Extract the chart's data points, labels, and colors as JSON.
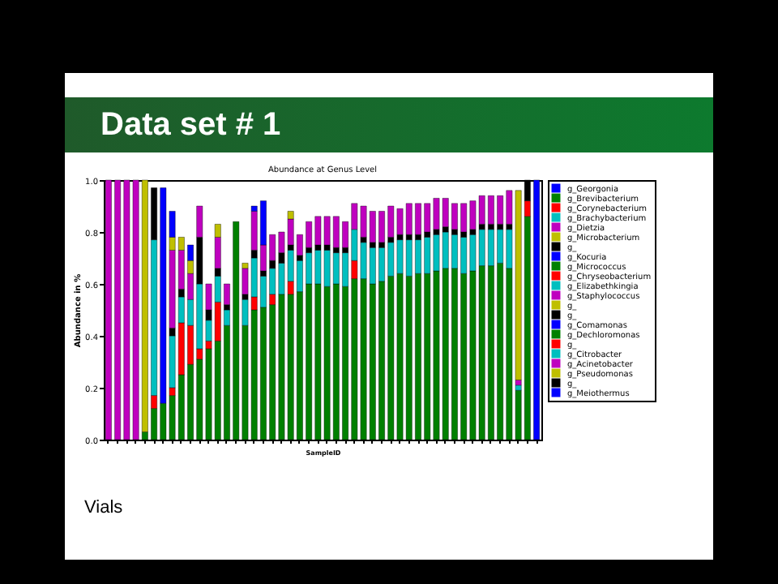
{
  "chart_data": {
    "type": "bar",
    "stacked": true,
    "title": "Data set # 1",
    "subtitle": "Abundance at Genus Level",
    "xlabel": "SampleID",
    "ylabel": "Abundance in %",
    "annotations": [
      "Vials"
    ],
    "legend": "right",
    "ylim": [
      0,
      1
    ],
    "yticks": [
      {
        "value": 0,
        "label": "0.0"
      },
      {
        "value": 0.2,
        "label": "0.2"
      },
      {
        "value": 0.4,
        "label": "0.4"
      },
      {
        "value": 0.6,
        "label": "0.6"
      },
      {
        "value": 0.8,
        "label": "0.8"
      },
      {
        "value": 1,
        "label": "1.0"
      }
    ],
    "categories": [
      null,
      null,
      null,
      null,
      null,
      null,
      null,
      null,
      null,
      null,
      null,
      null,
      null,
      null,
      null,
      null,
      null,
      null,
      null,
      null,
      null,
      null,
      null,
      null,
      null,
      null,
      null,
      null,
      null,
      null,
      null,
      null,
      null,
      null,
      null,
      null,
      null,
      null,
      null,
      null,
      null,
      null,
      null,
      null,
      null,
      null,
      null,
      null
    ],
    "series": [
      {
        "name": "g_Georgonia",
        "color": "#0000ff",
        "values": [
          null,
          null,
          null,
          null,
          null,
          null,
          null,
          null,
          null,
          null,
          null,
          null,
          null,
          null,
          null,
          null,
          null,
          null,
          null,
          null,
          null,
          null,
          null,
          null,
          null,
          null,
          null,
          null,
          null,
          null,
          null,
          null,
          null,
          null,
          null,
          null,
          null,
          null,
          null,
          null,
          null,
          null,
          null,
          null,
          null,
          null,
          null,
          null
        ]
      },
      {
        "name": "g_Brevibacterium",
        "color": "#008000",
        "values": [
          null,
          null,
          null,
          null,
          0.03,
          0.12,
          0.14,
          0.17,
          0.25,
          0.29,
          0.31,
          0.35,
          0.38,
          0.44,
          0.84,
          0.44,
          0.5,
          0.51,
          0.52,
          0.56,
          0.56,
          0.57,
          0.6,
          0.6,
          0.59,
          0.6,
          0.59,
          0.62,
          0.62,
          0.6,
          0.61,
          0.63,
          0.64,
          0.63,
          0.64,
          0.64,
          0.65,
          0.66,
          0.66,
          0.64,
          0.65,
          0.67,
          0.67,
          0.68,
          0.66,
          0.19,
          0.86,
          null
        ]
      },
      {
        "name": "g_Corynebacterium",
        "color": "#ff0000",
        "values": [
          null,
          null,
          null,
          null,
          null,
          0.05,
          null,
          0.03,
          0.2,
          0.15,
          0.04,
          0.03,
          0.15,
          null,
          null,
          null,
          0.05,
          null,
          0.04,
          null,
          0.05,
          null,
          null,
          null,
          null,
          null,
          null,
          0.07,
          null,
          null,
          null,
          null,
          null,
          null,
          null,
          null,
          null,
          null,
          null,
          null,
          null,
          null,
          null,
          null,
          null,
          null,
          0.06,
          null
        ]
      },
      {
        "name": "g_Brachybacterium",
        "color": "#00bfbf",
        "values": [
          null,
          null,
          null,
          null,
          null,
          0.6,
          null,
          0.2,
          0.1,
          0.1,
          0.25,
          0.08,
          0.1,
          0.06,
          null,
          0.1,
          0.15,
          0.12,
          0.1,
          0.12,
          0.12,
          0.12,
          0.12,
          0.13,
          0.14,
          0.12,
          0.13,
          0.12,
          0.14,
          0.14,
          0.13,
          0.13,
          0.13,
          0.14,
          0.13,
          0.14,
          0.14,
          0.14,
          0.13,
          0.14,
          0.14,
          0.14,
          0.14,
          0.13,
          0.15,
          0.02,
          null,
          null
        ]
      },
      {
        "name": "g_Dietzia",
        "color": "#bf00bf",
        "values": [
          null,
          null,
          null,
          null,
          null,
          null,
          null,
          null,
          null,
          null,
          null,
          null,
          null,
          null,
          null,
          null,
          null,
          null,
          null,
          null,
          null,
          null,
          null,
          null,
          null,
          null,
          null,
          null,
          null,
          null,
          null,
          null,
          null,
          null,
          null,
          null,
          null,
          null,
          null,
          null,
          null,
          null,
          null,
          null,
          null,
          null,
          null,
          null
        ]
      },
      {
        "name": "g_Microbacterium",
        "color": "#bfbf00",
        "values": [
          null,
          null,
          null,
          null,
          null,
          null,
          null,
          null,
          null,
          null,
          null,
          null,
          null,
          null,
          null,
          null,
          null,
          null,
          null,
          null,
          null,
          null,
          null,
          null,
          null,
          null,
          null,
          null,
          null,
          null,
          null,
          null,
          null,
          null,
          null,
          null,
          null,
          null,
          null,
          null,
          null,
          null,
          null,
          null,
          null,
          null,
          null,
          null
        ]
      },
      {
        "name": "g_",
        "color": "#000000",
        "values": [
          null,
          null,
          null,
          null,
          null,
          0.2,
          null,
          0.03,
          0.03,
          null,
          0.18,
          0.04,
          0.03,
          0.02,
          null,
          0.02,
          0.03,
          0.02,
          0.03,
          0.04,
          0.02,
          0.02,
          0.02,
          0.02,
          0.02,
          0.02,
          0.02,
          null,
          0.02,
          0.02,
          0.02,
          0.02,
          0.02,
          0.02,
          0.02,
          0.02,
          0.02,
          0.02,
          0.02,
          0.02,
          0.02,
          0.02,
          0.02,
          0.02,
          0.02,
          null,
          0.08,
          null
        ]
      },
      {
        "name": "g_Kocuria",
        "color": "#0000ff",
        "values": [
          null,
          null,
          null,
          null,
          null,
          null,
          null,
          null,
          null,
          null,
          null,
          null,
          null,
          null,
          null,
          null,
          null,
          null,
          null,
          null,
          null,
          null,
          null,
          null,
          null,
          null,
          null,
          null,
          null,
          null,
          null,
          null,
          null,
          null,
          null,
          null,
          null,
          null,
          null,
          null,
          null,
          null,
          null,
          null,
          null,
          null,
          null,
          null
        ]
      },
      {
        "name": "g_Micrococcus",
        "color": "#008000",
        "values": [
          null,
          null,
          null,
          null,
          null,
          null,
          null,
          null,
          null,
          null,
          null,
          null,
          null,
          null,
          null,
          null,
          null,
          null,
          null,
          null,
          null,
          null,
          null,
          null,
          null,
          null,
          null,
          null,
          null,
          null,
          null,
          null,
          null,
          null,
          null,
          null,
          null,
          null,
          null,
          null,
          null,
          null,
          null,
          null,
          null,
          null,
          null,
          null
        ]
      },
      {
        "name": "g_Chryseobacterium",
        "color": "#ff0000",
        "values": [
          null,
          null,
          null,
          null,
          null,
          null,
          null,
          null,
          null,
          null,
          null,
          null,
          null,
          null,
          null,
          null,
          null,
          null,
          null,
          null,
          null,
          null,
          null,
          null,
          null,
          null,
          null,
          null,
          null,
          null,
          null,
          null,
          null,
          null,
          null,
          null,
          null,
          null,
          null,
          null,
          null,
          null,
          null,
          null,
          null,
          null,
          null,
          null
        ]
      },
      {
        "name": "g_Elizabethkingia",
        "color": "#00bfbf",
        "values": [
          null,
          null,
          null,
          null,
          null,
          null,
          null,
          null,
          null,
          null,
          null,
          null,
          null,
          null,
          null,
          null,
          null,
          null,
          null,
          null,
          null,
          null,
          null,
          null,
          null,
          null,
          null,
          null,
          null,
          null,
          null,
          null,
          null,
          null,
          null,
          null,
          null,
          null,
          null,
          null,
          null,
          null,
          null,
          null,
          null,
          null,
          null,
          null
        ]
      },
      {
        "name": "g_Staphylococcus",
        "color": "#bf00bf",
        "values": [
          1,
          1,
          1,
          1,
          null,
          null,
          null,
          0.3,
          0.15,
          0.1,
          0.12,
          0.1,
          0.12,
          0.08,
          null,
          0.1,
          0.15,
          0.1,
          0.1,
          0.08,
          0.1,
          0.08,
          0.1,
          0.11,
          0.11,
          0.12,
          0.1,
          0.1,
          0.12,
          0.12,
          0.12,
          0.12,
          0.1,
          0.12,
          0.12,
          0.11,
          0.12,
          0.11,
          0.1,
          0.11,
          0.11,
          0.11,
          0.11,
          0.11,
          0.13,
          0.02,
          null,
          null
        ]
      },
      {
        "name": "g_",
        "color": "#bfbf00",
        "values": [
          null,
          null,
          null,
          null,
          null,
          null,
          null,
          null,
          null,
          null,
          null,
          null,
          null,
          null,
          null,
          null,
          null,
          null,
          null,
          null,
          null,
          null,
          null,
          null,
          null,
          null,
          null,
          null,
          null,
          null,
          null,
          null,
          null,
          null,
          null,
          null,
          null,
          null,
          null,
          null,
          null,
          null,
          null,
          null,
          null,
          null,
          null,
          null
        ]
      },
      {
        "name": "g_",
        "color": "#000000",
        "values": [
          null,
          null,
          null,
          null,
          null,
          null,
          null,
          null,
          null,
          null,
          null,
          null,
          null,
          null,
          null,
          null,
          null,
          null,
          null,
          null,
          null,
          null,
          null,
          null,
          null,
          null,
          null,
          null,
          null,
          null,
          null,
          null,
          null,
          null,
          null,
          null,
          null,
          null,
          null,
          null,
          null,
          null,
          null,
          null,
          null,
          null,
          null,
          null
        ]
      },
      {
        "name": "g_Comamonas",
        "color": "#0000ff",
        "values": [
          null,
          null,
          null,
          null,
          null,
          null,
          null,
          null,
          null,
          null,
          null,
          null,
          null,
          null,
          null,
          null,
          null,
          null,
          null,
          null,
          null,
          null,
          null,
          null,
          null,
          null,
          null,
          null,
          null,
          null,
          null,
          null,
          null,
          null,
          null,
          null,
          null,
          null,
          null,
          null,
          null,
          null,
          null,
          null,
          null,
          null,
          null,
          null
        ]
      },
      {
        "name": "g_Dechloromonas",
        "color": "#008000",
        "values": [
          null,
          null,
          null,
          null,
          null,
          null,
          null,
          null,
          null,
          null,
          null,
          null,
          null,
          null,
          null,
          null,
          null,
          null,
          null,
          null,
          null,
          null,
          null,
          null,
          null,
          null,
          null,
          null,
          null,
          null,
          null,
          null,
          null,
          null,
          null,
          null,
          null,
          null,
          null,
          null,
          null,
          null,
          null,
          null,
          null,
          null,
          null,
          null
        ]
      },
      {
        "name": "g_",
        "color": "#ff0000",
        "values": [
          null,
          null,
          null,
          null,
          null,
          null,
          null,
          null,
          null,
          null,
          null,
          null,
          null,
          null,
          null,
          null,
          null,
          null,
          null,
          null,
          null,
          null,
          null,
          null,
          null,
          null,
          null,
          null,
          null,
          null,
          null,
          null,
          null,
          null,
          null,
          null,
          null,
          null,
          null,
          null,
          null,
          null,
          null,
          null,
          null,
          null,
          null,
          null
        ]
      },
      {
        "name": "g_Citrobacter",
        "color": "#00bfbf",
        "values": [
          null,
          null,
          null,
          null,
          null,
          null,
          null,
          null,
          null,
          null,
          null,
          null,
          null,
          null,
          null,
          null,
          null,
          null,
          null,
          null,
          null,
          null,
          null,
          null,
          null,
          null,
          null,
          null,
          null,
          null,
          null,
          null,
          null,
          null,
          null,
          null,
          null,
          null,
          null,
          null,
          null,
          null,
          null,
          null,
          null,
          null,
          null,
          null
        ]
      },
      {
        "name": "g_Acinetobacter",
        "color": "#bf00bf",
        "values": [
          null,
          null,
          null,
          null,
          null,
          null,
          null,
          null,
          null,
          null,
          null,
          null,
          null,
          null,
          null,
          null,
          null,
          null,
          null,
          null,
          null,
          null,
          null,
          null,
          null,
          null,
          null,
          null,
          null,
          null,
          null,
          null,
          null,
          null,
          null,
          null,
          null,
          null,
          null,
          null,
          null,
          null,
          null,
          null,
          null,
          null,
          null,
          null
        ]
      },
      {
        "name": "g_Pseudomonas",
        "color": "#bfbf00",
        "values": [
          null,
          null,
          null,
          null,
          0.97,
          null,
          null,
          0.05,
          0.05,
          0.05,
          null,
          null,
          0.05,
          null,
          null,
          0.02,
          null,
          null,
          null,
          null,
          0.03,
          null,
          null,
          null,
          null,
          null,
          null,
          null,
          null,
          null,
          null,
          null,
          null,
          null,
          null,
          null,
          null,
          null,
          null,
          null,
          null,
          null,
          null,
          null,
          null,
          0.73,
          null,
          null
        ]
      },
      {
        "name": "g_",
        "color": "#000000",
        "values": [
          null,
          null,
          null,
          null,
          null,
          null,
          null,
          null,
          null,
          null,
          null,
          null,
          null,
          null,
          null,
          null,
          null,
          null,
          null,
          null,
          null,
          null,
          null,
          null,
          null,
          null,
          null,
          null,
          null,
          null,
          null,
          null,
          null,
          null,
          null,
          null,
          null,
          null,
          null,
          null,
          null,
          null,
          null,
          null,
          null,
          null,
          null,
          null
        ]
      },
      {
        "name": "g_Meiothermus",
        "color": "#0000ff",
        "values": [
          null,
          null,
          null,
          null,
          null,
          null,
          0.83,
          0.1,
          null,
          0.06,
          null,
          null,
          null,
          null,
          null,
          null,
          0.02,
          0.17,
          null,
          null,
          null,
          null,
          null,
          null,
          null,
          null,
          null,
          null,
          null,
          null,
          null,
          null,
          null,
          null,
          null,
          null,
          null,
          null,
          null,
          null,
          null,
          null,
          null,
          null,
          null,
          null,
          null,
          1
        ]
      }
    ]
  }
}
